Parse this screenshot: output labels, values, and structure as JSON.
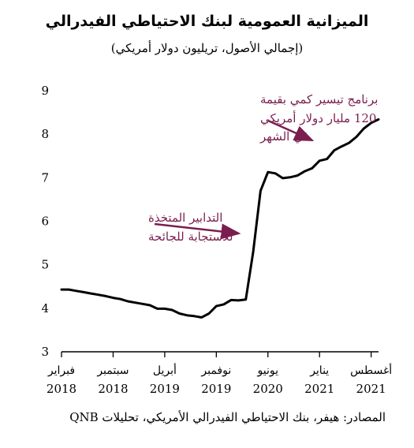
{
  "chart_data": {
    "type": "line",
    "title": "الميزانية العمومية لبنك الاحتياطي الفيدرالي",
    "subtitle": "(إجمالي الأصول، تريليون دولار أمريكي)",
    "xlabel": "",
    "ylabel": "",
    "ylim": [
      3,
      9
    ],
    "yticks": [
      "3",
      "4",
      "5",
      "6",
      "7",
      "8",
      "9"
    ],
    "xticks": [
      {
        "month": "فبراير",
        "year": "2018",
        "x": "2018-02"
      },
      {
        "month": "سبتمبر",
        "year": "2018",
        "x": "2018-09"
      },
      {
        "month": "أبريل",
        "year": "2019",
        "x": "2019-04"
      },
      {
        "month": "نوفمبر",
        "year": "2019",
        "x": "2019-11"
      },
      {
        "month": "يونيو",
        "year": "2020",
        "x": "2020-06"
      },
      {
        "month": "يناير",
        "year": "2021",
        "x": "2021-01"
      },
      {
        "month": "أغسطس",
        "year": "2021",
        "x": "2021-08"
      }
    ],
    "series": [
      {
        "color": "#000000",
        "x": [
          "2018-02",
          "2018-03",
          "2018-04",
          "2018-05",
          "2018-06",
          "2018-07",
          "2018-08",
          "2018-09",
          "2018-10",
          "2018-11",
          "2018-12",
          "2019-01",
          "2019-02",
          "2019-03",
          "2019-04",
          "2019-05",
          "2019-06",
          "2019-07",
          "2019-08",
          "2019-09",
          "2019-10",
          "2019-11",
          "2019-12",
          "2020-01",
          "2020-02",
          "2020-03",
          "2020-04",
          "2020-05",
          "2020-06",
          "2020-07",
          "2020-08",
          "2020-09",
          "2020-10",
          "2020-11",
          "2020-12",
          "2021-01",
          "2021-02",
          "2021-03",
          "2021-04",
          "2021-05",
          "2021-06",
          "2021-07",
          "2021-08",
          "2021-09"
        ],
        "y": [
          4.43,
          4.43,
          4.4,
          4.37,
          4.34,
          4.31,
          4.28,
          4.24,
          4.21,
          4.16,
          4.13,
          4.1,
          4.07,
          3.99,
          3.99,
          3.96,
          3.88,
          3.84,
          3.82,
          3.79,
          3.88,
          4.05,
          4.09,
          4.19,
          4.18,
          4.2,
          5.3,
          6.7,
          7.13,
          7.1,
          6.99,
          7.01,
          7.05,
          7.15,
          7.22,
          7.39,
          7.43,
          7.63,
          7.72,
          7.8,
          7.94,
          8.13,
          8.26,
          8.34
        ]
      }
    ],
    "annotations": [
      {
        "lines": [
          "برنامج تيسير كمي بقيمة",
          "120 مليار دولار أمريكي",
          "في الشهر"
        ],
        "color": "#7a1e4f",
        "points_to": "2021-01"
      },
      {
        "lines": [
          "التدابير المتخذة",
          "للاستجابة للجائحة"
        ],
        "color": "#7a1e4f",
        "points_to": "2020-04"
      }
    ]
  },
  "source": "المصادر: هيفر، بنك الاحتياطي الفيدرالي الأمريكي، تحليلات QNB"
}
